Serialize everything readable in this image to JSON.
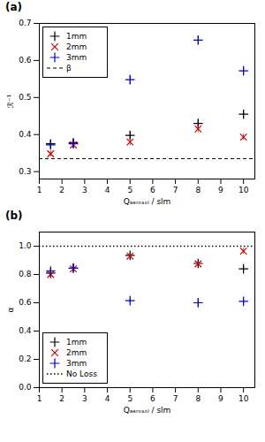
{
  "chart_data": [
    {
      "type": "scatter",
      "title": "(a)",
      "xlabel": "Qₐₑᵣₒₛₒₗ / slm",
      "ylabel": "ℛ⁻¹",
      "xlim": [
        1,
        10.5
      ],
      "ylim": [
        0.28,
        0.7
      ],
      "xticks": [
        1,
        2,
        3,
        4,
        5,
        6,
        7,
        8,
        9,
        10
      ],
      "yticks": [
        0.3,
        0.4,
        0.5,
        0.6,
        0.7
      ],
      "legend": "upper left",
      "series": [
        {
          "name": "1mm",
          "color": "#000000",
          "marker": "plus",
          "x": [
            1.5,
            2.5,
            5.0,
            8.0,
            10.0
          ],
          "values": [
            0.375,
            0.378,
            0.398,
            0.43,
            0.455
          ],
          "yerr": [
            0.01,
            0.01,
            0.01,
            0.01,
            0.01
          ]
        },
        {
          "name": "2mm",
          "color": "#cc0000",
          "marker": "times",
          "x": [
            1.5,
            2.5,
            5.0,
            8.0,
            10.0
          ],
          "values": [
            0.348,
            0.372,
            0.38,
            0.415,
            0.393
          ],
          "yerr": [
            0.008,
            0.008,
            0.01,
            0.01,
            0.008
          ]
        },
        {
          "name": "3mm",
          "color": "#0000cc",
          "marker": "plus",
          "x": [
            1.5,
            2.5,
            5.0,
            8.0,
            10.0
          ],
          "values": [
            0.372,
            0.375,
            0.548,
            0.655,
            0.572
          ],
          "yerr": [
            0.01,
            0.008,
            0.012,
            0.012,
            0.01
          ]
        },
        {
          "name": "β",
          "type": "hline",
          "color": "#000000",
          "line_style": "dashed",
          "values": [
            0.335
          ]
        }
      ]
    },
    {
      "type": "scatter",
      "title": "(b)",
      "xlabel": "Qₐₑᵣₒₛₒₗ / slm",
      "ylabel": "α",
      "xlim": [
        1,
        10.5
      ],
      "ylim": [
        0.0,
        1.1
      ],
      "xticks": [
        1,
        2,
        3,
        4,
        5,
        6,
        7,
        8,
        9,
        10
      ],
      "yticks": [
        {
          "value": 0,
          "label": "0.0"
        },
        0.2,
        0.4,
        0.6,
        0.8,
        {
          "value": 1,
          "label": "1.0"
        }
      ],
      "legend": "lower left",
      "series": [
        {
          "name": "1mm",
          "color": "#000000",
          "marker": "plus",
          "x": [
            1.5,
            2.5,
            5.0,
            8.0,
            10.0
          ],
          "values": [
            0.81,
            0.845,
            0.935,
            0.878,
            0.84
          ],
          "yerr": [
            0.015,
            0.015,
            0.015,
            0.015,
            0.015
          ]
        },
        {
          "name": "2mm",
          "color": "#cc0000",
          "marker": "times",
          "x": [
            1.5,
            2.5,
            5.0,
            8.0,
            10.0
          ],
          "values": [
            0.8,
            0.84,
            0.93,
            0.875,
            0.965
          ],
          "yerr": [
            0.03,
            0.015,
            0.015,
            0.015,
            0.02
          ]
        },
        {
          "name": "3mm",
          "color": "#0000cc",
          "marker": "plus",
          "x": [
            1.5,
            2.5,
            5.0,
            8.0,
            10.0
          ],
          "values": [
            0.825,
            0.845,
            0.615,
            0.6,
            0.61
          ],
          "yerr": [
            0.02,
            0.015,
            0.015,
            0.03,
            0.02
          ]
        },
        {
          "name": "No Loss",
          "type": "hline",
          "color": "#000000",
          "line_style": "dotted",
          "values": [
            1.0
          ]
        }
      ]
    }
  ]
}
